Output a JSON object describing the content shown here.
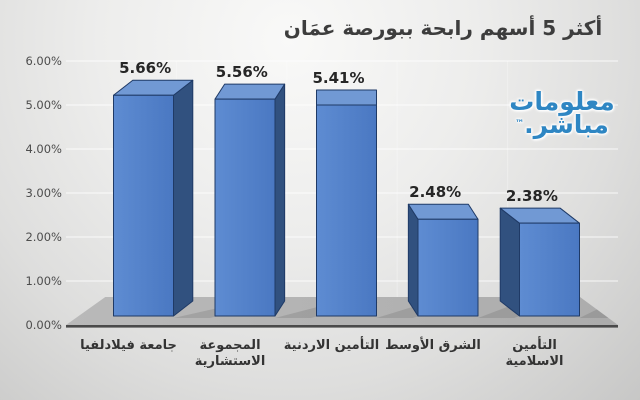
{
  "title": "أكثر 5 أسهم رابحة ببورصة عمَان",
  "watermark": {
    "line1": "معلومات",
    "line2": "مباشر.",
    "tm": "™",
    "color": "#2e86c3"
  },
  "chart_data": {
    "type": "bar",
    "style": "3d-column",
    "title": "أكثر 5 أسهم رابحة ببورصة عمَان",
    "categories": [
      "جامعة فيلادلفيا",
      "المجموعة الاستشارية",
      "التأمين الاردنية",
      "الشرق الأوسط",
      "التأمين الاسلامية"
    ],
    "category_lines": [
      [
        "جامعة فيلادلفيا"
      ],
      [
        "المجموعة",
        "الاستشارية"
      ],
      [
        "التأمين الاردنية"
      ],
      [
        "الشرق الأوسط"
      ],
      [
        "التأمين",
        "الاسلامية"
      ]
    ],
    "values": [
      5.66,
      5.56,
      5.41,
      2.48,
      2.38
    ],
    "value_labels": [
      "5.66%",
      "5.56%",
      "5.41%",
      "2.48%",
      "2.38%"
    ],
    "y_tick_labels": [
      "0.00%",
      "1.00%",
      "2.00%",
      "3.00%",
      "4.00%",
      "5.00%",
      "6.00%"
    ],
    "ylim": [
      0,
      6
    ],
    "y_tick_step": 1,
    "xlabel": "",
    "ylabel": "",
    "grid": true,
    "legend": false,
    "rtl": true,
    "colors": {
      "bar_front_light": "#5e8cd2",
      "bar_front": "#4a78c2",
      "bar_top": "#7199d4",
      "bar_side": "#31517f",
      "bar_border": "#1f3a66",
      "floor": "#acacac",
      "floor_back": "#b9b9b9",
      "axis_line": "#4a4a4a",
      "grid_line": "#ffffff",
      "value_label": "#262626",
      "tick_label": "#4d4d4d",
      "title": "#3d3d3d"
    }
  }
}
